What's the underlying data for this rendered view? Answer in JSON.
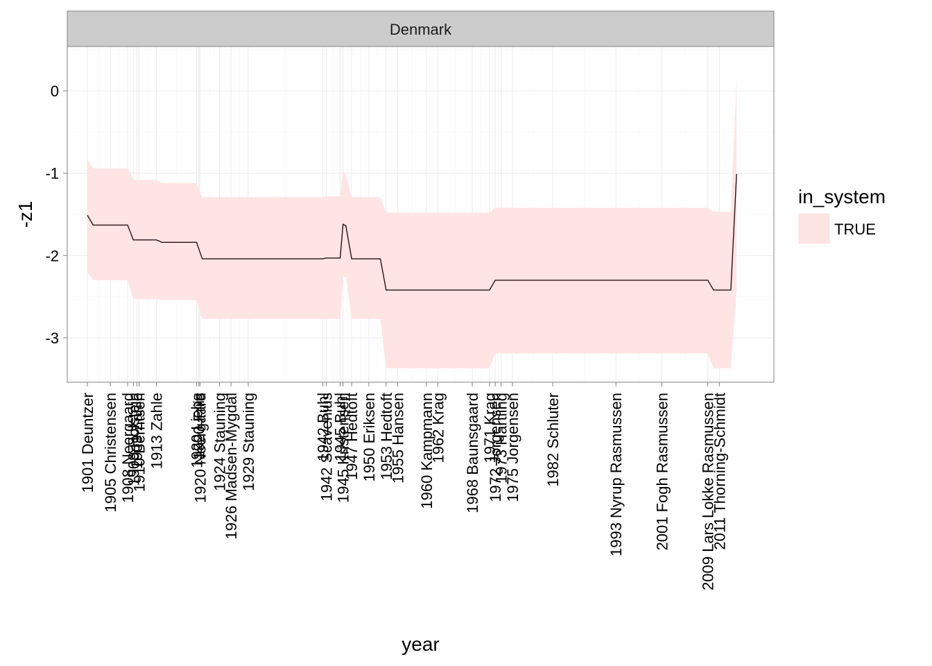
{
  "chart_data": {
    "type": "line",
    "facet": "Denmark",
    "xlabel": "year",
    "ylabel": "-z1",
    "xlim": [
      1897.5,
      2020.5
    ],
    "ylim": [
      -3.54,
      0.54
    ],
    "y_ticks": [
      0,
      -1,
      -2,
      -3
    ],
    "y_tick_labels": [
      "0",
      "-1",
      "-2",
      "-3"
    ],
    "grid": true,
    "legend": {
      "title": "in_system",
      "placement": "right",
      "entries": [
        {
          "label": "TRUE",
          "color": "#ffe4e4"
        }
      ]
    },
    "colors": {
      "ribbon": "#ffe4e4",
      "line": "#2a0f0f",
      "strip": "#cccccc",
      "grid": "#ebebeb",
      "border": "#7f7f7f"
    },
    "x_ticks": [
      {
        "x": 1901,
        "label": "1901 Deuntzer"
      },
      {
        "x": 1905,
        "label": "1905 Christensen"
      },
      {
        "x": 1908,
        "label": "1908 Neergaard"
      },
      {
        "x": 1909,
        "label": "1909 Holstein"
      },
      {
        "x": 1909.6,
        "label": "1909 Zahle"
      },
      {
        "x": 1910,
        "label": "1910 Berntsen"
      },
      {
        "x": 1913,
        "label": "1913 Zahle"
      },
      {
        "x": 1920,
        "label": "1920 Liebe"
      },
      {
        "x": 1920.4,
        "label": "1920 Friis"
      },
      {
        "x": 1920.6,
        "label": "1920 Neergaard"
      },
      {
        "x": 1924,
        "label": "1924 Stauning"
      },
      {
        "x": 1926,
        "label": "1926 Madsen-Mygdal"
      },
      {
        "x": 1929,
        "label": "1929 Stauning"
      },
      {
        "x": 1942,
        "label": "1942 Buhl"
      },
      {
        "x": 1942.6,
        "label": "1942 Scavenius"
      },
      {
        "x": 1945,
        "label": "1945 Buhl"
      },
      {
        "x": 1945.5,
        "label": "1945 Kristensen"
      },
      {
        "x": 1947,
        "label": "1947 Hedtoft"
      },
      {
        "x": 1950,
        "label": "1950 Eriksen"
      },
      {
        "x": 1953,
        "label": "1953 Hedtoft"
      },
      {
        "x": 1955,
        "label": "1955 Hansen"
      },
      {
        "x": 1960,
        "label": "1960 Kampmann"
      },
      {
        "x": 1962,
        "label": "1962 Krag"
      },
      {
        "x": 1968,
        "label": "1968 Baunsgaard"
      },
      {
        "x": 1971,
        "label": "1971 Krag"
      },
      {
        "x": 1972,
        "label": "1972 Jorgensen"
      },
      {
        "x": 1973,
        "label": "1973 Hartling"
      },
      {
        "x": 1975,
        "label": "1975 Jorgensen"
      },
      {
        "x": 1982,
        "label": "1982 Schluter"
      },
      {
        "x": 1993,
        "label": "1993 Nyrup Rasmussen"
      },
      {
        "x": 2001,
        "label": "2001 Fogh Rasmussen"
      },
      {
        "x": 2009,
        "label": "2009 Lars Lokke Rasmussen"
      },
      {
        "x": 2011,
        "label": "2011 Thorning-Schmidt"
      }
    ],
    "series": [
      {
        "x": [
          1901,
          1902,
          1905,
          1908,
          1909,
          1910,
          1913,
          1914,
          1920,
          1921,
          1942,
          1942.5,
          1945,
          1945.5,
          1946,
          1947,
          1950,
          1952,
          1953,
          1955,
          1960,
          1962,
          1968,
          1971,
          1972,
          1973,
          1975,
          1982,
          1993,
          2001,
          2009,
          2010,
          2011,
          2013,
          2014
        ],
        "y": [
          -1.51,
          -1.63,
          -1.63,
          -1.63,
          -1.81,
          -1.81,
          -1.81,
          -1.84,
          -1.84,
          -2.04,
          -2.04,
          -2.03,
          -2.03,
          -1.62,
          -1.64,
          -2.04,
          -2.04,
          -2.04,
          -2.42,
          -2.42,
          -2.42,
          -2.42,
          -2.42,
          -2.42,
          -2.3,
          -2.3,
          -2.3,
          -2.3,
          -2.3,
          -2.3,
          -2.3,
          -2.42,
          -2.42,
          -2.42,
          -1.01
        ],
        "lower": [
          -2.2,
          -2.3,
          -2.3,
          -2.3,
          -2.53,
          -2.53,
          -2.53,
          -2.54,
          -2.54,
          -2.77,
          -2.77,
          -2.77,
          -2.77,
          -2.26,
          -2.26,
          -2.77,
          -2.77,
          -2.77,
          -3.37,
          -3.37,
          -3.37,
          -3.37,
          -3.37,
          -3.37,
          -3.19,
          -3.19,
          -3.19,
          -3.19,
          -3.19,
          -3.19,
          -3.19,
          -3.37,
          -3.37,
          -3.37,
          -2.42
        ],
        "upper": [
          -0.83,
          -0.94,
          -0.94,
          -0.94,
          -1.08,
          -1.08,
          -1.08,
          -1.12,
          -1.12,
          -1.29,
          -1.29,
          -1.28,
          -1.28,
          -0.98,
          -1.02,
          -1.29,
          -1.29,
          -1.29,
          -1.48,
          -1.48,
          -1.48,
          -1.48,
          -1.48,
          -1.48,
          -1.42,
          -1.42,
          -1.42,
          -1.42,
          -1.42,
          -1.42,
          -1.42,
          -1.47,
          -1.47,
          -1.47,
          0.14
        ]
      }
    ]
  }
}
